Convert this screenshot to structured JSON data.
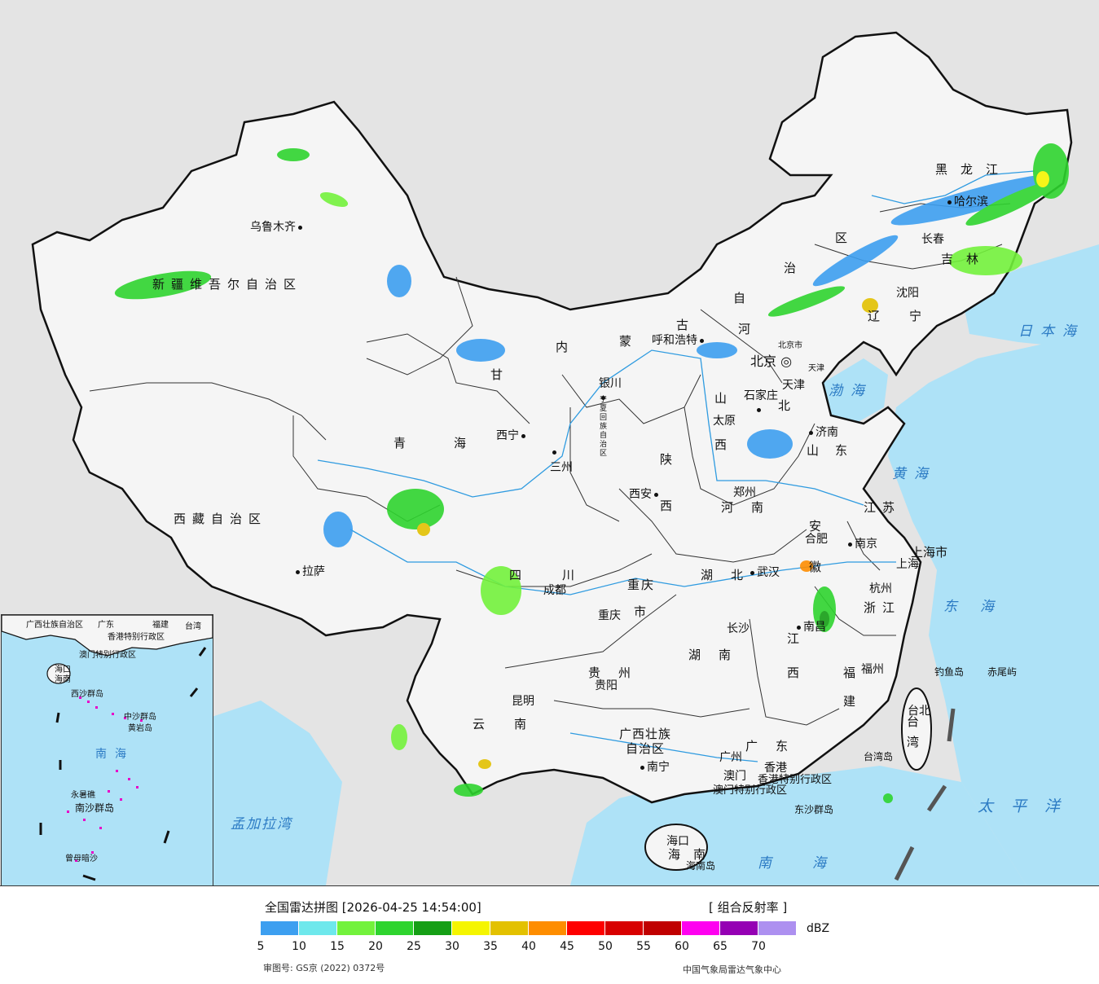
{
  "legend": {
    "title": "全国雷达拼图 [2026-04-25 14:54:00]",
    "product": "[ 组合反射率 ]",
    "unit": "dBZ",
    "ticks": [
      "5",
      "10",
      "15",
      "20",
      "25",
      "30",
      "35",
      "40",
      "45",
      "50",
      "55",
      "60",
      "65",
      "70"
    ],
    "colors": [
      "#3d9ff0",
      "#6ee8ec",
      "#73f23c",
      "#2ed42e",
      "#159f15",
      "#f5f500",
      "#e3c100",
      "#fe8d00",
      "#fe0000",
      "#d80000",
      "#c00000",
      "#fe00f0",
      "#9500b4",
      "#ad90f0"
    ],
    "approval": "审图号: GS京 (2022) 0372号",
    "source": "中国气象局雷达气象中心"
  },
  "provinces": {
    "xinjiang": "新疆维吾尔自治区",
    "xizang": "西藏自治区",
    "qinghai_a": "青",
    "qinghai_b": "海",
    "gansu": "甘",
    "neimenggu": [
      "内",
      "蒙",
      "古",
      "自",
      "治",
      "区"
    ],
    "heilongjiang": "黑龙江",
    "jilin": "吉林",
    "liaoning": "辽宁",
    "hebei": "河北",
    "shanxi": [
      "山",
      "西"
    ],
    "shaanxi": [
      "陕",
      "西"
    ],
    "shandong": "山东",
    "henan": "河南",
    "jiangsu": "江苏",
    "anhui": [
      "安",
      "徽"
    ],
    "hubei": "湖北",
    "sichuan": "四川",
    "chongqing": [
      "重庆",
      "市"
    ],
    "guizhou": "贵州",
    "hunan": "湖南",
    "jiangxi": [
      "江",
      "西"
    ],
    "zhejiang": "浙江",
    "fujian": [
      "福",
      "建"
    ],
    "yunnan": "云南",
    "guangxi": [
      "广西壮族",
      "自治区"
    ],
    "guangdong": "广东",
    "hainan": "海南",
    "taiwan": [
      "台",
      "湾"
    ],
    "ningxia": "宁夏回族自治区",
    "beijing": "北京市",
    "tianjin": "天津",
    "shanghai": "上海市",
    "hongkong": "香港特别行政区",
    "macau": "澳门特别行政区"
  },
  "cities": {
    "urumqi": "乌鲁木齐",
    "lhasa": "拉萨",
    "xining": "西宁",
    "lanzhou": "三州",
    "yinchuan": "银川",
    "hohhot": "呼和浩特",
    "beijing": "北京",
    "tianjin": "天津",
    "shijiazhuang": "石家庄",
    "taiyuan": "太原",
    "jinan": "济南",
    "zhengzhou": "郑州",
    "xian": "西安",
    "hefei": "合肥",
    "nanjing": "南京",
    "shanghai": "上海",
    "hangzhou": "杭州",
    "wuhan": "武汉",
    "chengdu": "成都",
    "chongqing": "重庆",
    "guiyang": "贵阳",
    "changsha": "长沙",
    "nanchang": "南昌",
    "fuzhou": "福州",
    "taibei": "台北",
    "kunming": "昆明",
    "nanning": "南宁",
    "guangzhou": "广州",
    "hongkong": "香港",
    "macau": "澳门",
    "haikou": "海口",
    "shenyang": "沈阳",
    "changchun": "长春",
    "harbin": "哈尔滨"
  },
  "seas": {
    "japan_sea": "日本海",
    "bohai": "渤海",
    "yellow_sea": "黄海",
    "east_sea": "东海",
    "pacific": "太平洋",
    "south_sea": "南海",
    "bengal": "孟加拉湾"
  },
  "islands": {
    "diaoyu": "钓鱼岛",
    "chiwei": "赤尾屿",
    "taiwan_island": "台湾岛",
    "dongsha": "东沙群岛",
    "hainan_island": "海南岛"
  },
  "inset": {
    "guangxi": "广西壮族自治区",
    "guangdong": "广东",
    "fujian": "福建",
    "taiwan": "台湾",
    "hk_macau": "香港特别行政区",
    "macau": "澳门特别行政区",
    "haikou": "海口",
    "hainan": "海南",
    "xisha": "西沙群岛",
    "zhongsha": "中沙群岛",
    "huangyan": "黄岩岛",
    "south_sea": "南海",
    "nansha": "南沙群岛",
    "yongshu": "永暑礁",
    "zengmu": "曾母暗沙"
  }
}
